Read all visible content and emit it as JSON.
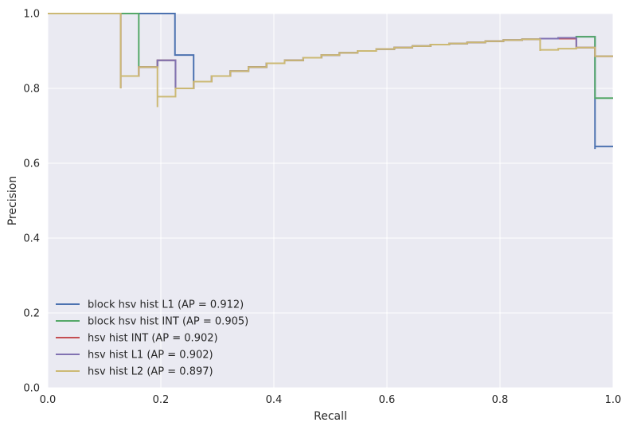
{
  "chart_data": {
    "type": "line",
    "xlabel": "Recall",
    "ylabel": "Precision",
    "xlim": [
      0.0,
      1.0
    ],
    "ylim": [
      0.0,
      1.0
    ],
    "xticks": [
      "0.0",
      "0.2",
      "0.4",
      "0.6",
      "0.8",
      "1.0"
    ],
    "yticks": [
      "0.0",
      "0.2",
      "0.4",
      "0.6",
      "0.8",
      "1.0"
    ],
    "grid": true,
    "legend_position": "lower-left",
    "background_color": "#EAEAF2",
    "grid_color": "#FFFFFF",
    "series": [
      {
        "name": "block hsv hist L1 (AP = 0.912)",
        "color": "#4C72B0",
        "points": [
          [
            0.0,
            1.0
          ],
          [
            0.225,
            1.0
          ],
          [
            0.225,
            0.889
          ],
          [
            0.258,
            0.889
          ],
          [
            0.258,
            0.818
          ],
          [
            0.29,
            0.818
          ],
          [
            0.29,
            0.833
          ],
          [
            0.323,
            0.833
          ],
          [
            0.323,
            0.846
          ],
          [
            0.355,
            0.846
          ],
          [
            0.355,
            0.857
          ],
          [
            0.387,
            0.857
          ],
          [
            0.387,
            0.867
          ],
          [
            0.419,
            0.867
          ],
          [
            0.419,
            0.875
          ],
          [
            0.452,
            0.875
          ],
          [
            0.452,
            0.882
          ],
          [
            0.484,
            0.882
          ],
          [
            0.484,
            0.889
          ],
          [
            0.516,
            0.889
          ],
          [
            0.516,
            0.895
          ],
          [
            0.548,
            0.895
          ],
          [
            0.548,
            0.9
          ],
          [
            0.581,
            0.9
          ],
          [
            0.581,
            0.905
          ],
          [
            0.613,
            0.905
          ],
          [
            0.613,
            0.909
          ],
          [
            0.645,
            0.909
          ],
          [
            0.645,
            0.913
          ],
          [
            0.677,
            0.913
          ],
          [
            0.677,
            0.917
          ],
          [
            0.71,
            0.917
          ],
          [
            0.71,
            0.92
          ],
          [
            0.742,
            0.92
          ],
          [
            0.742,
            0.923
          ],
          [
            0.774,
            0.923
          ],
          [
            0.774,
            0.926
          ],
          [
            0.806,
            0.926
          ],
          [
            0.806,
            0.929
          ],
          [
            0.839,
            0.929
          ],
          [
            0.839,
            0.931
          ],
          [
            0.871,
            0.931
          ],
          [
            0.871,
            0.933
          ],
          [
            0.903,
            0.933
          ],
          [
            0.903,
            0.935
          ],
          [
            0.935,
            0.935
          ],
          [
            0.935,
            0.938
          ],
          [
            0.968,
            0.938
          ],
          [
            0.968,
            0.638
          ],
          [
            0.968,
            0.645
          ],
          [
            1.0,
            0.645
          ]
        ]
      },
      {
        "name": "block hsv hist INT (AP = 0.905)",
        "color": "#55A868",
        "points": [
          [
            0.0,
            1.0
          ],
          [
            0.161,
            1.0
          ],
          [
            0.161,
            0.857
          ],
          [
            0.194,
            0.857
          ],
          [
            0.194,
            0.875
          ],
          [
            0.226,
            0.875
          ],
          [
            0.226,
            0.8
          ],
          [
            0.258,
            0.8
          ],
          [
            0.258,
            0.818
          ],
          [
            0.29,
            0.818
          ],
          [
            0.29,
            0.833
          ],
          [
            0.323,
            0.833
          ],
          [
            0.323,
            0.846
          ],
          [
            0.355,
            0.846
          ],
          [
            0.355,
            0.857
          ],
          [
            0.387,
            0.857
          ],
          [
            0.387,
            0.867
          ],
          [
            0.419,
            0.867
          ],
          [
            0.419,
            0.875
          ],
          [
            0.452,
            0.875
          ],
          [
            0.452,
            0.882
          ],
          [
            0.484,
            0.882
          ],
          [
            0.484,
            0.889
          ],
          [
            0.516,
            0.889
          ],
          [
            0.516,
            0.895
          ],
          [
            0.548,
            0.895
          ],
          [
            0.548,
            0.9
          ],
          [
            0.581,
            0.9
          ],
          [
            0.581,
            0.905
          ],
          [
            0.613,
            0.905
          ],
          [
            0.613,
            0.909
          ],
          [
            0.645,
            0.909
          ],
          [
            0.645,
            0.913
          ],
          [
            0.677,
            0.913
          ],
          [
            0.677,
            0.917
          ],
          [
            0.71,
            0.917
          ],
          [
            0.71,
            0.92
          ],
          [
            0.742,
            0.92
          ],
          [
            0.742,
            0.923
          ],
          [
            0.774,
            0.923
          ],
          [
            0.774,
            0.926
          ],
          [
            0.806,
            0.926
          ],
          [
            0.806,
            0.929
          ],
          [
            0.839,
            0.929
          ],
          [
            0.839,
            0.931
          ],
          [
            0.871,
            0.931
          ],
          [
            0.871,
            0.933
          ],
          [
            0.903,
            0.933
          ],
          [
            0.903,
            0.935
          ],
          [
            0.935,
            0.935
          ],
          [
            0.935,
            0.938
          ],
          [
            0.968,
            0.938
          ],
          [
            0.968,
            0.774
          ],
          [
            1.0,
            0.774
          ]
        ]
      },
      {
        "name": "hsv hist INT (AP = 0.902)",
        "color": "#C44E52",
        "points": [
          [
            0.0,
            1.0
          ],
          [
            0.129,
            1.0
          ],
          [
            0.129,
            0.8
          ],
          [
            0.129,
            0.833
          ],
          [
            0.161,
            0.833
          ],
          [
            0.161,
            0.857
          ],
          [
            0.194,
            0.857
          ],
          [
            0.194,
            0.875
          ],
          [
            0.226,
            0.875
          ],
          [
            0.226,
            0.8
          ],
          [
            0.258,
            0.8
          ],
          [
            0.258,
            0.818
          ],
          [
            0.29,
            0.818
          ],
          [
            0.29,
            0.833
          ],
          [
            0.323,
            0.833
          ],
          [
            0.323,
            0.846
          ],
          [
            0.355,
            0.846
          ],
          [
            0.355,
            0.857
          ],
          [
            0.387,
            0.857
          ],
          [
            0.387,
            0.867
          ],
          [
            0.419,
            0.867
          ],
          [
            0.419,
            0.875
          ],
          [
            0.452,
            0.875
          ],
          [
            0.452,
            0.882
          ],
          [
            0.484,
            0.882
          ],
          [
            0.484,
            0.889
          ],
          [
            0.516,
            0.889
          ],
          [
            0.516,
            0.895
          ],
          [
            0.548,
            0.895
          ],
          [
            0.548,
            0.9
          ],
          [
            0.581,
            0.9
          ],
          [
            0.581,
            0.905
          ],
          [
            0.613,
            0.905
          ],
          [
            0.613,
            0.909
          ],
          [
            0.645,
            0.909
          ],
          [
            0.645,
            0.913
          ],
          [
            0.677,
            0.913
          ],
          [
            0.677,
            0.917
          ],
          [
            0.71,
            0.917
          ],
          [
            0.71,
            0.92
          ],
          [
            0.742,
            0.92
          ],
          [
            0.742,
            0.923
          ],
          [
            0.774,
            0.923
          ],
          [
            0.774,
            0.926
          ],
          [
            0.806,
            0.926
          ],
          [
            0.806,
            0.929
          ],
          [
            0.839,
            0.929
          ],
          [
            0.839,
            0.931
          ],
          [
            0.871,
            0.931
          ],
          [
            0.871,
            0.933
          ],
          [
            0.935,
            0.933
          ],
          [
            0.935,
            0.935
          ],
          [
            0.935,
            0.909
          ],
          [
            0.968,
            0.909
          ],
          [
            0.968,
            0.886
          ],
          [
            1.0,
            0.886
          ]
        ]
      },
      {
        "name": "hsv hist L1 (AP = 0.902)",
        "color": "#8172B2",
        "points": [
          [
            0.0,
            1.0
          ],
          [
            0.129,
            1.0
          ],
          [
            0.129,
            0.8
          ],
          [
            0.129,
            0.833
          ],
          [
            0.161,
            0.833
          ],
          [
            0.161,
            0.857
          ],
          [
            0.194,
            0.857
          ],
          [
            0.194,
            0.875
          ],
          [
            0.226,
            0.875
          ],
          [
            0.226,
            0.8
          ],
          [
            0.258,
            0.8
          ],
          [
            0.258,
            0.818
          ],
          [
            0.29,
            0.818
          ],
          [
            0.29,
            0.833
          ],
          [
            0.323,
            0.833
          ],
          [
            0.323,
            0.846
          ],
          [
            0.355,
            0.846
          ],
          [
            0.355,
            0.857
          ],
          [
            0.387,
            0.857
          ],
          [
            0.387,
            0.867
          ],
          [
            0.419,
            0.867
          ],
          [
            0.419,
            0.875
          ],
          [
            0.452,
            0.875
          ],
          [
            0.452,
            0.882
          ],
          [
            0.484,
            0.882
          ],
          [
            0.484,
            0.889
          ],
          [
            0.516,
            0.889
          ],
          [
            0.516,
            0.895
          ],
          [
            0.548,
            0.895
          ],
          [
            0.548,
            0.9
          ],
          [
            0.581,
            0.9
          ],
          [
            0.581,
            0.905
          ],
          [
            0.613,
            0.905
          ],
          [
            0.613,
            0.909
          ],
          [
            0.645,
            0.909
          ],
          [
            0.645,
            0.913
          ],
          [
            0.677,
            0.913
          ],
          [
            0.677,
            0.917
          ],
          [
            0.71,
            0.917
          ],
          [
            0.71,
            0.92
          ],
          [
            0.742,
            0.92
          ],
          [
            0.742,
            0.923
          ],
          [
            0.774,
            0.923
          ],
          [
            0.774,
            0.926
          ],
          [
            0.806,
            0.926
          ],
          [
            0.806,
            0.929
          ],
          [
            0.839,
            0.929
          ],
          [
            0.839,
            0.931
          ],
          [
            0.871,
            0.931
          ],
          [
            0.871,
            0.933
          ],
          [
            0.903,
            0.933
          ],
          [
            0.903,
            0.935
          ],
          [
            0.935,
            0.935
          ],
          [
            0.935,
            0.909
          ],
          [
            0.968,
            0.909
          ],
          [
            0.968,
            0.886
          ],
          [
            1.0,
            0.886
          ]
        ]
      },
      {
        "name": "hsv hist L2 (AP = 0.897)",
        "color": "#CCB974",
        "points": [
          [
            0.0,
            1.0
          ],
          [
            0.129,
            1.0
          ],
          [
            0.129,
            0.8
          ],
          [
            0.129,
            0.833
          ],
          [
            0.161,
            0.833
          ],
          [
            0.161,
            0.857
          ],
          [
            0.194,
            0.857
          ],
          [
            0.194,
            0.75
          ],
          [
            0.194,
            0.778
          ],
          [
            0.226,
            0.778
          ],
          [
            0.226,
            0.8
          ],
          [
            0.258,
            0.8
          ],
          [
            0.258,
            0.818
          ],
          [
            0.29,
            0.818
          ],
          [
            0.29,
            0.833
          ],
          [
            0.323,
            0.833
          ],
          [
            0.323,
            0.846
          ],
          [
            0.355,
            0.846
          ],
          [
            0.355,
            0.857
          ],
          [
            0.387,
            0.857
          ],
          [
            0.387,
            0.867
          ],
          [
            0.419,
            0.867
          ],
          [
            0.419,
            0.875
          ],
          [
            0.452,
            0.875
          ],
          [
            0.452,
            0.882
          ],
          [
            0.484,
            0.882
          ],
          [
            0.484,
            0.889
          ],
          [
            0.516,
            0.889
          ],
          [
            0.516,
            0.895
          ],
          [
            0.548,
            0.895
          ],
          [
            0.548,
            0.9
          ],
          [
            0.581,
            0.9
          ],
          [
            0.581,
            0.905
          ],
          [
            0.613,
            0.905
          ],
          [
            0.613,
            0.909
          ],
          [
            0.645,
            0.909
          ],
          [
            0.645,
            0.913
          ],
          [
            0.677,
            0.913
          ],
          [
            0.677,
            0.917
          ],
          [
            0.71,
            0.917
          ],
          [
            0.71,
            0.92
          ],
          [
            0.742,
            0.92
          ],
          [
            0.742,
            0.923
          ],
          [
            0.774,
            0.923
          ],
          [
            0.774,
            0.926
          ],
          [
            0.806,
            0.926
          ],
          [
            0.806,
            0.929
          ],
          [
            0.839,
            0.929
          ],
          [
            0.839,
            0.931
          ],
          [
            0.871,
            0.931
          ],
          [
            0.871,
            0.9
          ],
          [
            0.871,
            0.903
          ],
          [
            0.903,
            0.903
          ],
          [
            0.903,
            0.906
          ],
          [
            0.935,
            0.906
          ],
          [
            0.935,
            0.909
          ],
          [
            0.968,
            0.909
          ],
          [
            0.968,
            0.886
          ],
          [
            1.0,
            0.886
          ]
        ]
      }
    ]
  }
}
